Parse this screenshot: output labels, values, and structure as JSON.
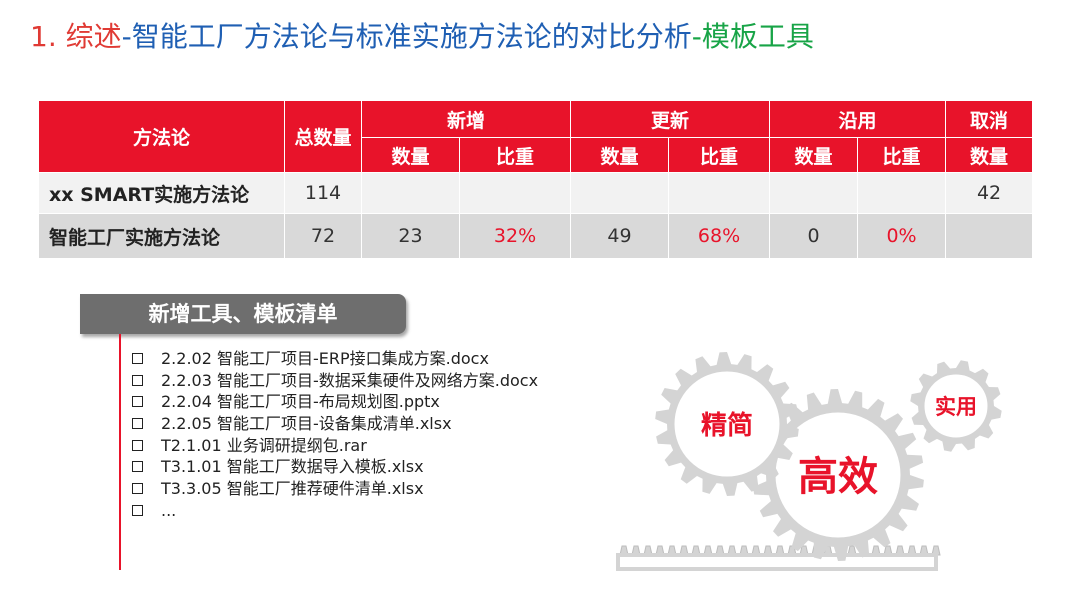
{
  "title": {
    "prefix": "1. 综述",
    "main": "-智能工厂方法论与标准实施方法论的对比分析",
    "suffix": "-模板工具"
  },
  "table": {
    "headers": {
      "methodology": "方法论",
      "total": "总数量",
      "new": "新增",
      "updated": "更新",
      "reused": "沿用",
      "cancelled": "取消",
      "count": "数量",
      "ratio": "比重"
    },
    "rows": [
      {
        "name": "xx SMART实施方法论",
        "total": "114",
        "new_count": "",
        "new_ratio": "",
        "upd_count": "",
        "upd_ratio": "",
        "reuse_count": "",
        "reuse_ratio": "",
        "cancel_count": "42"
      },
      {
        "name": "智能工厂实施方法论",
        "total": "72",
        "new_count": "23",
        "new_ratio": "32%",
        "upd_count": "49",
        "upd_ratio": "68%",
        "reuse_count": "0",
        "reuse_ratio": "0%",
        "cancel_count": ""
      }
    ]
  },
  "tool_list": {
    "heading": "新增工具、模板清单",
    "items": [
      "2.2.02 智能工厂项目-ERP接口集成方案.docx",
      "2.2.03 智能工厂项目-数据采集硬件及网络方案.docx",
      "2.2.04 智能工厂项目-布局规划图.pptx",
      "2.2.05 智能工厂项目-设备集成清单.xlsx",
      "T2.1.01 业务调研提纲包.rar",
      "T3.1.01 智能工厂数据导入模板.xlsx",
      "T3.3.05 智能工厂推荐硬件清单.xlsx",
      "..."
    ]
  },
  "gears": {
    "left": "精简",
    "center": "高效",
    "right": "实用"
  },
  "colors": {
    "accent_red": "#e8132a",
    "title_blue": "#1f5fb3",
    "title_green": "#18a447",
    "banner_gray": "#6e6e6e",
    "gear_gray": "#d4d4d4"
  }
}
